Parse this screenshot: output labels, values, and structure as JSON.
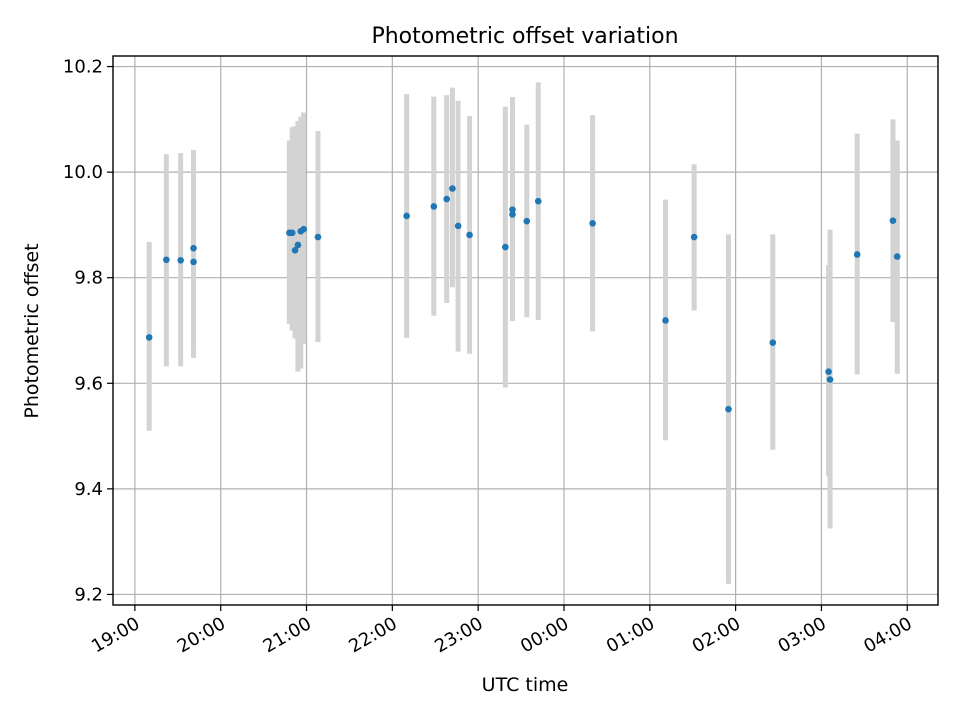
{
  "chart_data": {
    "type": "scatter",
    "title": "Photometric offset variation",
    "xlabel": "UTC time",
    "ylabel": "Photometric offset",
    "xlim": [
      "19:00",
      "04:00"
    ],
    "ylim": [
      9.18,
      10.22
    ],
    "grid": true,
    "colors": {
      "point": "#1f77b4",
      "errorbar": "#d3d3d3"
    },
    "x_ticks": [
      "19:00",
      "20:00",
      "21:00",
      "22:00",
      "23:00",
      "00:00",
      "01:00",
      "02:00",
      "03:00",
      "04:00"
    ],
    "y_ticks": [
      "9.2",
      "9.4",
      "9.6",
      "9.8",
      "10.0",
      "10.2"
    ],
    "points": [
      {
        "time": "19:10",
        "y": 9.687,
        "lo": 9.51,
        "hi": 9.868
      },
      {
        "time": "19:22",
        "y": 9.834,
        "lo": 9.632,
        "hi": 10.034
      },
      {
        "time": "19:32",
        "y": 9.833,
        "lo": 9.632,
        "hi": 10.036
      },
      {
        "time": "19:41",
        "y": 9.856,
        "lo": 9.67,
        "hi": 10.042
      },
      {
        "time": "19:41",
        "y": 9.83,
        "lo": 9.648,
        "hi": 10.012
      },
      {
        "time": "20:48",
        "y": 9.885,
        "lo": 9.712,
        "hi": 10.06
      },
      {
        "time": "20:50",
        "y": 9.885,
        "lo": 9.7,
        "hi": 10.085
      },
      {
        "time": "20:52",
        "y": 9.852,
        "lo": 9.685,
        "hi": 10.087
      },
      {
        "time": "20:54",
        "y": 9.862,
        "lo": 9.622,
        "hi": 10.097
      },
      {
        "time": "20:56",
        "y": 9.888,
        "lo": 9.628,
        "hi": 10.105
      },
      {
        "time": "20:58",
        "y": 9.892,
        "lo": 9.675,
        "hi": 10.113
      },
      {
        "time": "21:08",
        "y": 9.877,
        "lo": 9.678,
        "hi": 10.078
      },
      {
        "time": "22:10",
        "y": 9.917,
        "lo": 9.686,
        "hi": 10.148
      },
      {
        "time": "22:29",
        "y": 9.935,
        "lo": 9.728,
        "hi": 10.143
      },
      {
        "time": "22:38",
        "y": 9.949,
        "lo": 9.752,
        "hi": 10.146
      },
      {
        "time": "22:42",
        "y": 9.969,
        "lo": 9.782,
        "hi": 10.16
      },
      {
        "time": "22:46",
        "y": 9.898,
        "lo": 9.66,
        "hi": 10.135
      },
      {
        "time": "22:54",
        "y": 9.881,
        "lo": 9.656,
        "hi": 10.106
      },
      {
        "time": "23:19",
        "y": 9.858,
        "lo": 9.592,
        "hi": 10.124
      },
      {
        "time": "23:24",
        "y": 9.929,
        "lo": 9.718,
        "hi": 10.142
      },
      {
        "time": "23:24",
        "y": 9.92,
        "lo": 9.742,
        "hi": 10.098
      },
      {
        "time": "23:34",
        "y": 9.907,
        "lo": 9.725,
        "hi": 10.09
      },
      {
        "time": "23:42",
        "y": 9.945,
        "lo": 9.72,
        "hi": 10.17
      },
      {
        "time": "00:20",
        "y": 9.903,
        "lo": 9.698,
        "hi": 10.108
      },
      {
        "time": "01:11",
        "y": 9.719,
        "lo": 9.492,
        "hi": 9.948
      },
      {
        "time": "01:31",
        "y": 9.877,
        "lo": 9.738,
        "hi": 10.015
      },
      {
        "time": "01:55",
        "y": 9.551,
        "lo": 9.22,
        "hi": 9.882
      },
      {
        "time": "02:26",
        "y": 9.677,
        "lo": 9.474,
        "hi": 9.882
      },
      {
        "time": "03:05",
        "y": 9.622,
        "lo": 9.424,
        "hi": 9.824
      },
      {
        "time": "03:06",
        "y": 9.607,
        "lo": 9.325,
        "hi": 9.891
      },
      {
        "time": "03:25",
        "y": 9.844,
        "lo": 9.617,
        "hi": 10.073
      },
      {
        "time": "03:50",
        "y": 9.908,
        "lo": 9.716,
        "hi": 10.1
      },
      {
        "time": "03:53",
        "y": 9.84,
        "lo": 9.618,
        "hi": 10.06
      }
    ]
  }
}
